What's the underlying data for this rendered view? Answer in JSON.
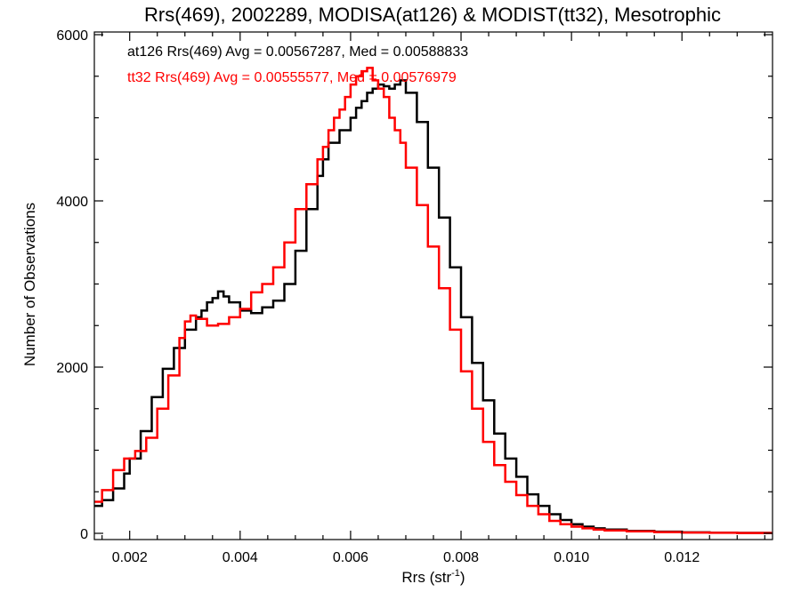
{
  "chart_data": {
    "type": "line",
    "step": true,
    "title": "Rrs(469), 2002289, MODISA(at126) & MODIST(tt32), Mesotrophic",
    "xlabel": "Rrs (str",
    "xlabel_sup": "-1",
    "xlabel_tail": ")",
    "ylabel": "Number of Observations",
    "xlim": [
      0.00136,
      0.01364
    ],
    "ylim": [
      0,
      6000
    ],
    "xticks": [
      0.002,
      0.004,
      0.006,
      0.008,
      0.01,
      0.012
    ],
    "xtick_labels": [
      "0.002",
      "0.004",
      "0.006",
      "0.008",
      "0.010",
      "0.012"
    ],
    "yticks": [
      0,
      2000,
      4000,
      6000
    ],
    "ytick_labels": [
      "0",
      "2000",
      "4000",
      "6000"
    ],
    "grid": false,
    "annotations": [
      {
        "text": "at126 Rrs(469) Avg = 0.00567287, Med = 0.00588833",
        "color": "#000000"
      },
      {
        "text": "tt32 Rrs(469) Avg = 0.00555577, Med = 0.00576979",
        "color": "#ff0000"
      }
    ],
    "series": [
      {
        "name": "at126",
        "color": "#000000",
        "x": [
          0.00136,
          0.0015,
          0.0017,
          0.0019,
          0.002,
          0.0022,
          0.0024,
          0.0026,
          0.0028,
          0.003,
          0.0032,
          0.0033,
          0.0034,
          0.0035,
          0.0036,
          0.0037,
          0.0038,
          0.004,
          0.0042,
          0.0044,
          0.0046,
          0.0048,
          0.005,
          0.0052,
          0.0054,
          0.0055,
          0.0056,
          0.0058,
          0.006,
          0.0061,
          0.0062,
          0.0063,
          0.0064,
          0.0065,
          0.0066,
          0.0067,
          0.0068,
          0.0069,
          0.007,
          0.0072,
          0.0074,
          0.0076,
          0.0078,
          0.008,
          0.0082,
          0.0084,
          0.0086,
          0.0088,
          0.009,
          0.0092,
          0.0094,
          0.0096,
          0.0098,
          0.01,
          0.0102,
          0.0104,
          0.0106,
          0.011,
          0.0115,
          0.012,
          0.0125,
          0.013,
          0.0136
        ],
        "y": [
          330,
          400,
          540,
          720,
          900,
          1230,
          1640,
          1980,
          2230,
          2450,
          2600,
          2680,
          2780,
          2830,
          2910,
          2850,
          2780,
          2680,
          2650,
          2720,
          2800,
          3000,
          3400,
          3900,
          4300,
          4500,
          4700,
          4850,
          5000,
          5120,
          5200,
          5300,
          5350,
          5400,
          5380,
          5350,
          5400,
          5450,
          5300,
          4950,
          4400,
          3800,
          3200,
          2600,
          2050,
          1600,
          1200,
          900,
          680,
          470,
          330,
          230,
          160,
          110,
          80,
          60,
          45,
          30,
          20,
          12,
          8,
          5,
          3
        ]
      },
      {
        "name": "tt32",
        "color": "#ff0000",
        "x": [
          0.00136,
          0.0015,
          0.0017,
          0.0019,
          0.0021,
          0.0023,
          0.0025,
          0.0027,
          0.0029,
          0.003,
          0.0031,
          0.0032,
          0.0034,
          0.0036,
          0.0038,
          0.004,
          0.0042,
          0.0044,
          0.0046,
          0.0048,
          0.005,
          0.0052,
          0.0054,
          0.0055,
          0.0056,
          0.0057,
          0.0058,
          0.0059,
          0.006,
          0.0061,
          0.0062,
          0.0063,
          0.0064,
          0.0065,
          0.0066,
          0.0067,
          0.0068,
          0.0069,
          0.007,
          0.0072,
          0.0074,
          0.0076,
          0.0078,
          0.008,
          0.0082,
          0.0084,
          0.0086,
          0.0088,
          0.009,
          0.0092,
          0.0094,
          0.0096,
          0.0098,
          0.01,
          0.0102,
          0.0104,
          0.0106,
          0.011,
          0.0115,
          0.012,
          0.0125,
          0.013,
          0.0136
        ],
        "y": [
          380,
          520,
          760,
          900,
          990,
          1150,
          1500,
          1900,
          2350,
          2550,
          2620,
          2580,
          2500,
          2520,
          2600,
          2700,
          2900,
          3000,
          3200,
          3500,
          3900,
          4200,
          4500,
          4650,
          4850,
          5000,
          5100,
          5250,
          5400,
          5500,
          5560,
          5600,
          5450,
          5350,
          5250,
          5000,
          4850,
          4700,
          4400,
          3950,
          3450,
          2950,
          2450,
          1950,
          1500,
          1100,
          820,
          620,
          460,
          330,
          230,
          150,
          110,
          80,
          60,
          45,
          35,
          25,
          15,
          10,
          6,
          4,
          3
        ]
      }
    ]
  }
}
